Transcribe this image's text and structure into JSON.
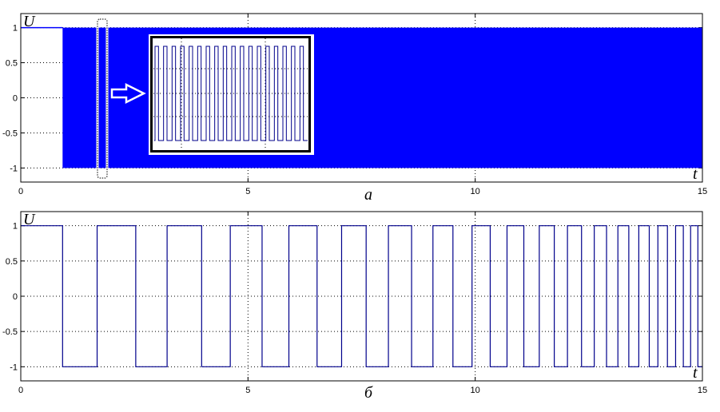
{
  "colors": {
    "signal": "#0000ff",
    "line": "#00008b",
    "axes": "#000000",
    "grid": "#000000"
  },
  "chart_data": [
    {
      "type": "line",
      "caption": "а",
      "xlabel": "t",
      "ylabel": "U",
      "xlim": [
        0,
        15
      ],
      "ylim": [
        -1.2,
        1.2
      ],
      "xticks": [
        "0",
        "5",
        "10",
        "15"
      ],
      "yticks": [
        "1",
        "0.5",
        "0",
        "-0.5",
        "-1"
      ],
      "grid": true,
      "initial_level": 1,
      "dense_oscillation_start": 0.92,
      "dense_oscillation_range": [
        -1,
        1
      ],
      "annotations": [
        "dotted-selection-box",
        "arrow",
        "zoomed-inset"
      ]
    },
    {
      "type": "line",
      "caption": "б",
      "xlabel": "t",
      "ylabel": "U",
      "xlim": [
        0,
        15
      ],
      "ylim": [
        -1.2,
        1.2
      ],
      "xticks": [
        "0",
        "5",
        "10",
        "15"
      ],
      "yticks": [
        "1",
        "0.5",
        "0",
        "-0.5",
        "-1"
      ],
      "grid": true,
      "initial_level": 1,
      "switch_times": [
        0.92,
        1.68,
        2.53,
        3.22,
        3.98,
        4.61,
        5.31,
        5.9,
        6.52,
        7.06,
        7.6,
        8.09,
        8.6,
        9.07,
        9.51,
        9.93,
        10.33,
        10.7,
        11.07,
        11.41,
        11.74,
        12.03,
        12.34,
        12.62,
        12.89,
        13.14,
        13.38,
        13.6,
        13.83,
        14.02,
        14.23,
        14.41,
        14.58,
        14.74,
        14.9
      ]
    }
  ]
}
